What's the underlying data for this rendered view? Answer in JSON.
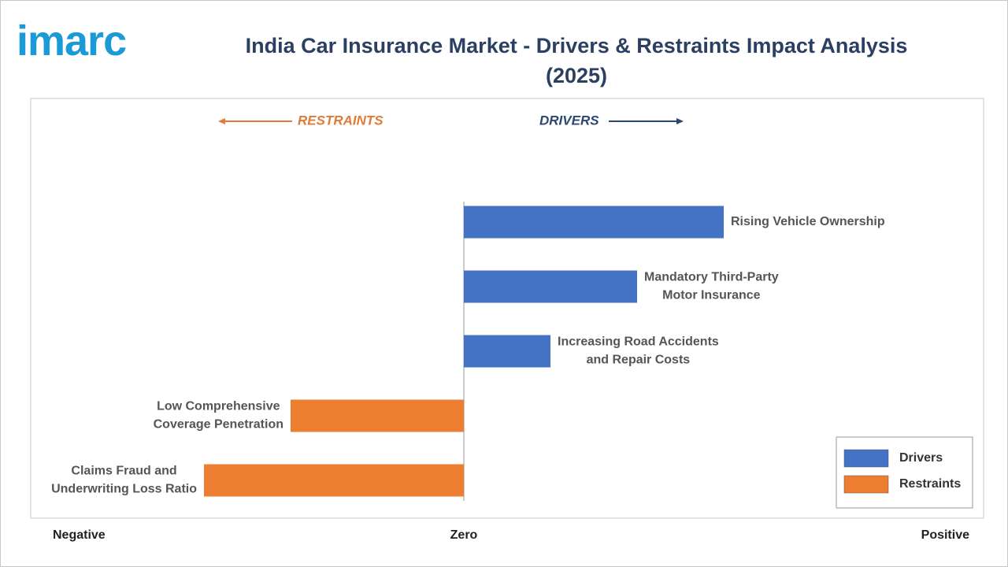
{
  "logo": "imarc",
  "chart_data": {
    "type": "diverging-bar",
    "title": "India Car Insurance Market - Drivers & Restraints Impact Analysis (2025)",
    "direction_labels": {
      "negative": "RESTRAINTS",
      "positive": "DRIVERS"
    },
    "categories": [
      [
        "Rising Vehicle Ownership"
      ],
      [
        "Mandatory Third-Party",
        "Motor Insurance"
      ],
      [
        "Increasing Road Accidents",
        "and Repair Costs"
      ],
      [
        "Low Comprehensive",
        "Coverage Penetration"
      ],
      [
        "Claims Fraud and",
        "Underwriting Loss Ratio"
      ]
    ],
    "series": [
      {
        "name": "Drivers",
        "color": "#4472c4",
        "values": [
          3,
          2,
          1,
          null,
          null
        ]
      },
      {
        "name": "Restraints",
        "color": "#ed7d31",
        "values": [
          null,
          null,
          null,
          -2,
          -3
        ]
      }
    ],
    "xlim": [
      -5,
      6
    ],
    "xticks": [
      {
        "value": -5,
        "label": "Negative"
      },
      {
        "value": 0,
        "label": "Zero"
      },
      {
        "value": 6,
        "label": "Positive"
      }
    ],
    "legend": "bottom-right"
  }
}
